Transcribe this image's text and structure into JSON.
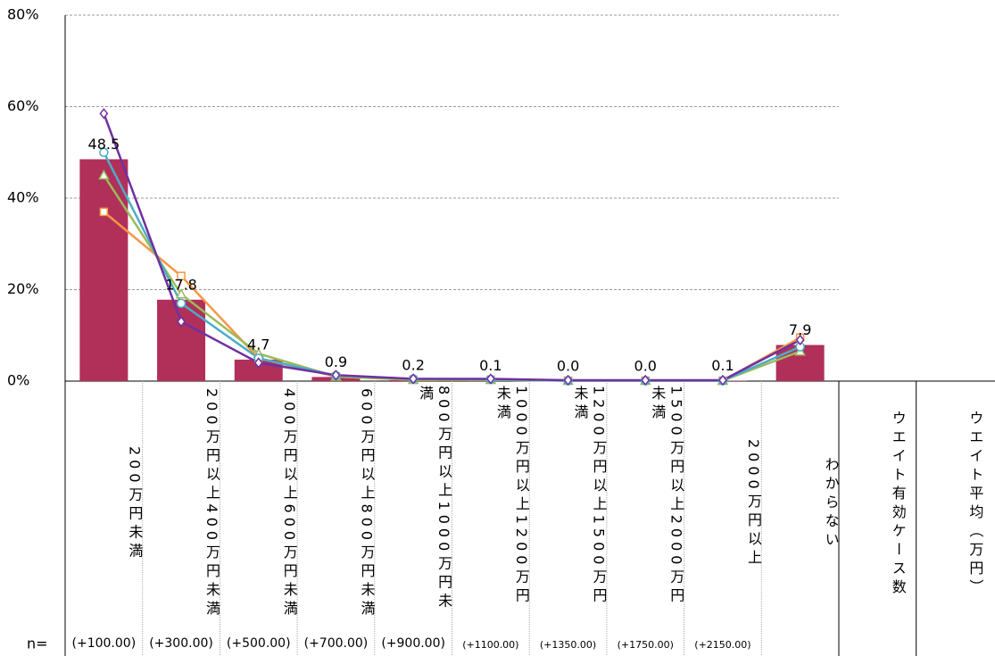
{
  "chart_data": {
    "type": "bar",
    "categories": [
      "200万円未満",
      "200万円以上400万円未満",
      "400万円以上600万円未満",
      "600万円以上800万円未満",
      "800万円以上1000万円未満",
      "1000万円以上1200万円未満",
      "1200万円以上1500万円未満",
      "1500万円以上2000万円未満",
      "2000万円以上",
      "わからない"
    ],
    "values": [
      48.5,
      17.8,
      4.7,
      0.9,
      0.2,
      0.1,
      0.0,
      0.0,
      0.1,
      7.9
    ],
    "value_labels": [
      "48.5",
      "17.8",
      "4.7",
      "0.9",
      "0.2",
      "0.1",
      "0.0",
      "0.0",
      "0.1",
      "7.9"
    ],
    "color": "#b0305a",
    "series": [
      {
        "color": "#f79646",
        "marker": "square",
        "values": [
          37,
          23,
          5,
          1,
          0.3,
          0.3,
          0.1,
          0.1,
          0.1,
          9.5
        ]
      },
      {
        "color": "#9bbb59",
        "marker": "triangle",
        "values": [
          45,
          19,
          6,
          1,
          0.3,
          0.3,
          0.1,
          0.1,
          0.1,
          6.5
        ]
      },
      {
        "color": "#4bacc6",
        "marker": "circle",
        "values": [
          50,
          17,
          5,
          1.2,
          0.5,
          0.4,
          0.1,
          0.1,
          0.1,
          7.5
        ]
      },
      {
        "color": "#7030a0",
        "marker": "diamond",
        "values": [
          58.5,
          13,
          4,
          1.3,
          0.5,
          0.5,
          0.2,
          0.2,
          0.2,
          9
        ]
      }
    ],
    "ylim": [
      0,
      80
    ],
    "yticks": [
      {
        "value": 0,
        "label": "0%"
      },
      {
        "value": 20,
        "label": "20%"
      },
      {
        "value": 40,
        "label": "40%"
      },
      {
        "value": 60,
        "label": "60%"
      },
      {
        "value": 80,
        "label": "80%"
      }
    ],
    "grid": true,
    "extra_columns": [
      "ウエイト有効ケース数",
      "ウエイト平均（万円）"
    ],
    "n_label": "n=",
    "n_values": [
      "(+100.00)",
      "(+300.00)",
      "(+500.00)",
      "(+700.00)",
      "(+900.00)",
      "(+1100.00)",
      "(+1350.00)",
      "(+1750.00)",
      "(+2150.00)"
    ]
  }
}
